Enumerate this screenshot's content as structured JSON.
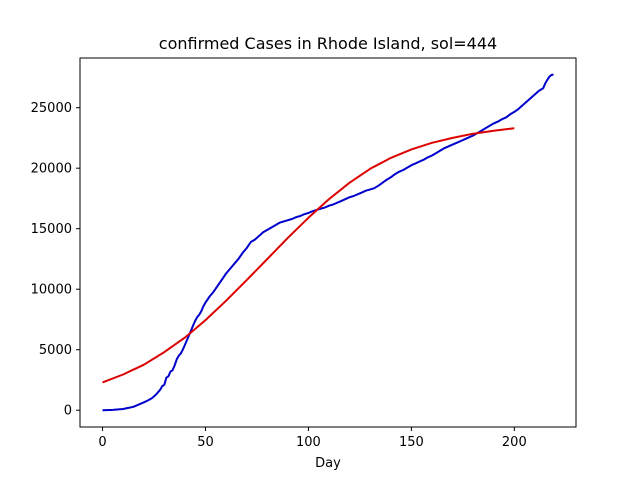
{
  "chart_data": {
    "type": "line",
    "title": "confirmed Cases in Rhode Island, sol=444",
    "xlabel": "Day",
    "ylabel": "",
    "xlim": [
      -10.95,
      229.95
    ],
    "ylim": [
      -1386,
      29106
    ],
    "xticks": [
      0,
      50,
      100,
      150,
      200
    ],
    "yticks": [
      0,
      5000,
      10000,
      15000,
      20000,
      25000
    ],
    "grid": false,
    "legend": "none",
    "series": [
      {
        "color": "#0000cc",
        "x": [
          0,
          5,
          10,
          15,
          18,
          20,
          22,
          24,
          26,
          28,
          29,
          30,
          31,
          32,
          33,
          34,
          35,
          36,
          37,
          38,
          39,
          40,
          41,
          42,
          43,
          44,
          45,
          46,
          47,
          48,
          49,
          50,
          52,
          54,
          56,
          58,
          60,
          62,
          64,
          66,
          68,
          70,
          72,
          74,
          76,
          78,
          80,
          82,
          84,
          86,
          88,
          90,
          92,
          94,
          96,
          98,
          100,
          102,
          104,
          106,
          108,
          110,
          112,
          114,
          116,
          118,
          120,
          122,
          124,
          126,
          128,
          130,
          132,
          134,
          136,
          138,
          140,
          142,
          144,
          146,
          148,
          150,
          152,
          154,
          156,
          158,
          160,
          162,
          164,
          166,
          168,
          170,
          172,
          174,
          176,
          178,
          180,
          182,
          184,
          186,
          188,
          190,
          192,
          194,
          196,
          198,
          200,
          202,
          204,
          206,
          208,
          210,
          212,
          214,
          215,
          216,
          217,
          218,
          219
        ],
        "values": [
          0,
          30,
          100,
          280,
          500,
          650,
          800,
          1000,
          1300,
          1700,
          2000,
          2100,
          2700,
          2800,
          3200,
          3300,
          3700,
          4200,
          4500,
          4700,
          5000,
          5400,
          5800,
          6200,
          6600,
          7000,
          7400,
          7700,
          7900,
          8200,
          8600,
          8900,
          9400,
          9800,
          10300,
          10800,
          11300,
          11700,
          12100,
          12500,
          13000,
          13400,
          13900,
          14100,
          14400,
          14700,
          14900,
          15100,
          15300,
          15500,
          15600,
          15700,
          15800,
          15950,
          16050,
          16200,
          16300,
          16450,
          16550,
          16650,
          16750,
          16900,
          17000,
          17150,
          17300,
          17450,
          17600,
          17700,
          17850,
          18000,
          18150,
          18250,
          18350,
          18550,
          18800,
          19050,
          19250,
          19500,
          19700,
          19850,
          20050,
          20250,
          20400,
          20550,
          20700,
          20900,
          21050,
          21250,
          21450,
          21650,
          21800,
          21950,
          22100,
          22250,
          22400,
          22550,
          22700,
          22900,
          23100,
          23300,
          23500,
          23700,
          23850,
          24050,
          24200,
          24450,
          24650,
          24900,
          25200,
          25500,
          25800,
          26100,
          26400,
          26600,
          27000,
          27300,
          27550,
          27700,
          27750
        ]
      },
      {
        "color": "#dd0000",
        "x": [
          0,
          10,
          20,
          30,
          40,
          50,
          60,
          70,
          80,
          90,
          100,
          110,
          120,
          130,
          140,
          150,
          160,
          170,
          180,
          190,
          200
        ],
        "values": [
          2300,
          2950,
          3750,
          4800,
          6000,
          7450,
          9050,
          10750,
          12500,
          14250,
          15900,
          17450,
          18800,
          19950,
          20850,
          21550,
          22100,
          22500,
          22850,
          23100,
          23300
        ]
      }
    ]
  }
}
